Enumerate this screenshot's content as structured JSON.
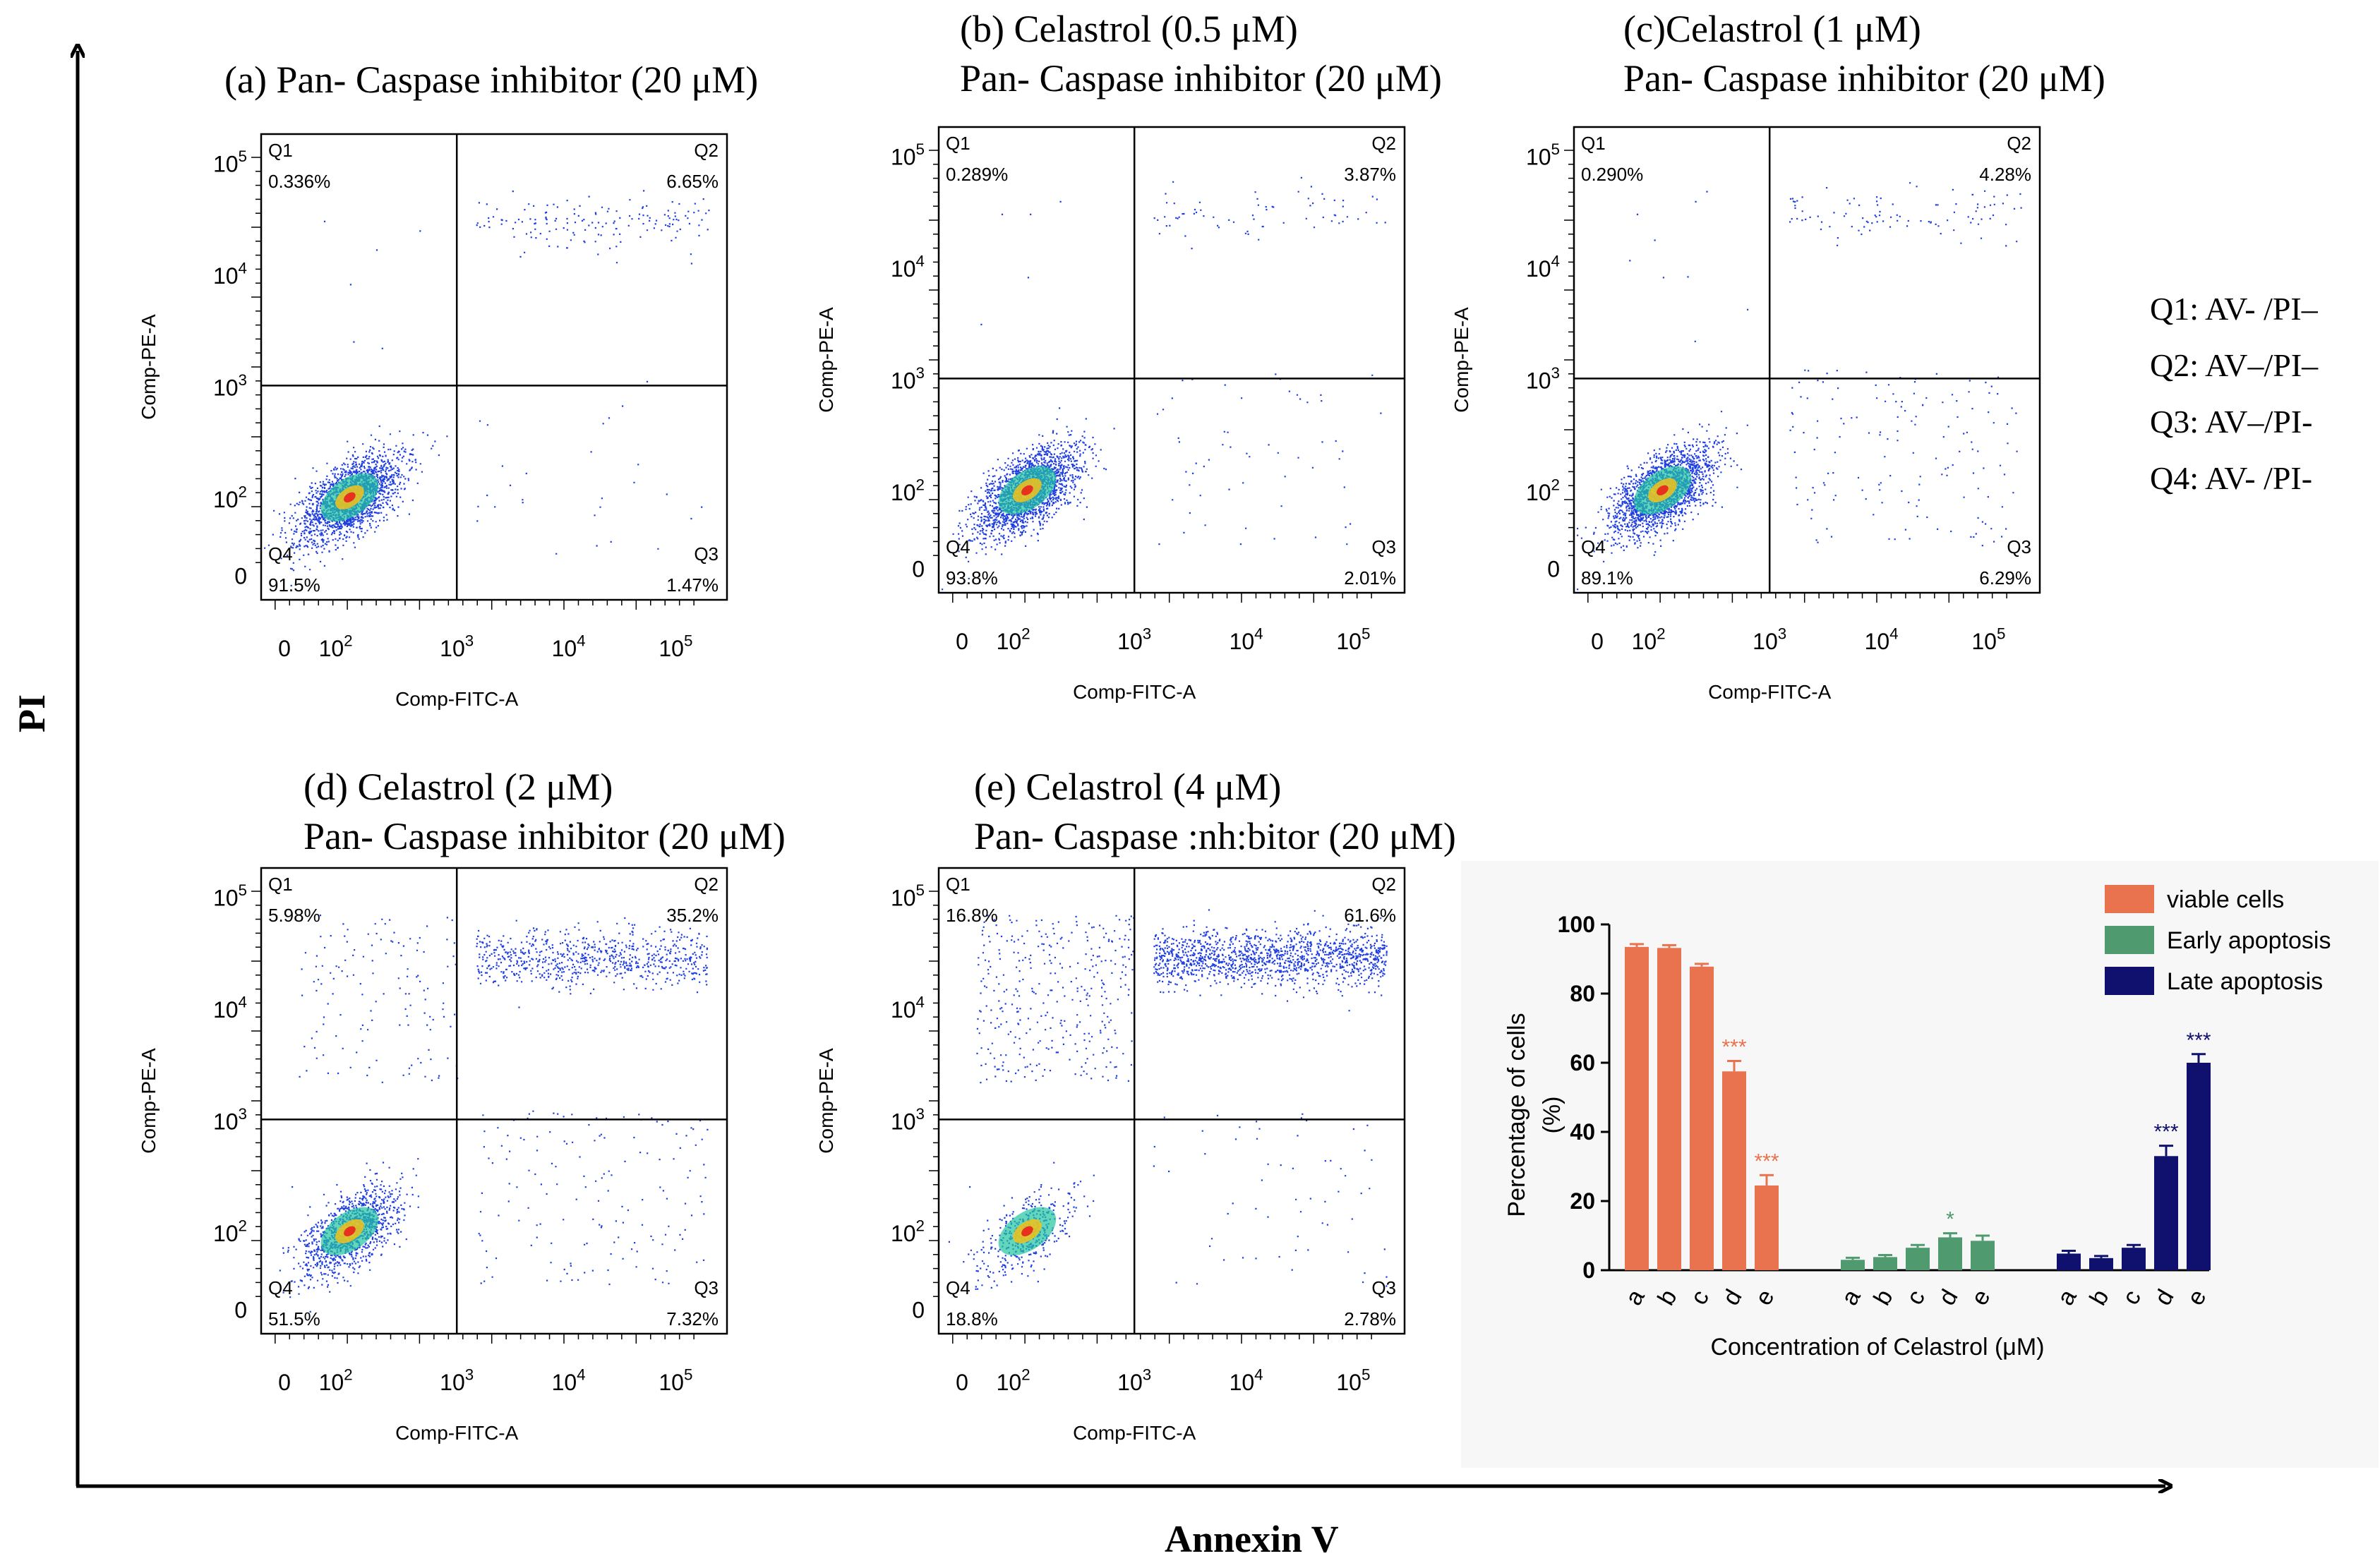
{
  "axes": {
    "y_label": "PI",
    "x_label": "Annexin V"
  },
  "quadrant_legend": [
    "Q1: AV- /PI–",
    "Q2: AV–/PI–",
    "Q3: AV–/PI-",
    "Q4: AV- /PI-"
  ],
  "panels": [
    {
      "title_lines": [
        "(a) Pan- Caspase inhibitor (20 μM)"
      ],
      "q1": "0.336%",
      "q2": "6.65%",
      "q3": "1.47%",
      "q4": "91.5%"
    },
    {
      "title_lines": [
        "(b) Celastrol (0.5 μM)",
        "Pan- Caspase inhibitor (20 μM)"
      ],
      "q1": "0.289%",
      "q2": "3.87%",
      "q3": "2.01%",
      "q4": "93.8%"
    },
    {
      "title_lines": [
        "(c)Celastrol (1 μM)",
        "Pan- Caspase inhibitor (20 μM)"
      ],
      "q1": "0.290%",
      "q2": "4.28%",
      "q3": "6.29%",
      "q4": "89.1%"
    },
    {
      "title_lines": [
        "(d) Celastrol (2 μM)",
        "Pan- Caspase inhibitor (20 μM)"
      ],
      "q1": "5.98%",
      "q2": "35.2%",
      "q3": "7.32%",
      "q4": "51.5%"
    },
    {
      "title_lines": [
        "(e) Celastrol (4 μM)",
        "Pan- Caspase :nh:bitor (20 μM)"
      ],
      "q1": "16.8%",
      "q2": "61.6%",
      "q3": "2.78%",
      "q4": "18.8%"
    }
  ],
  "flow_labels": {
    "x_axis": "Comp-FITC-A",
    "y_axis": "Comp-PE-A",
    "x_ticks": [
      "0",
      "10^2",
      "10^3",
      "10^4",
      "10^5"
    ],
    "y_ticks": [
      "0",
      "10^2",
      "10^3",
      "10^4",
      "10^5"
    ],
    "quadrants": [
      "Q1",
      "Q2",
      "Q3",
      "Q4"
    ]
  },
  "colors": {
    "viable": "#e8734e",
    "early": "#4f9a6e",
    "late": "#10106e",
    "dots": "#1f3fe0"
  },
  "chart_data": [
    {
      "type": "bar",
      "title": "",
      "xlabel": "Concentration of Celastrol (μM)",
      "ylabel": "Percentage of cells (%)",
      "ylim": [
        0,
        100
      ],
      "yticks": [
        0,
        20,
        40,
        60,
        80,
        100
      ],
      "groups": [
        "viable cells",
        "Early apoptosis",
        "Late apoptosis"
      ],
      "categories": [
        "a",
        "b",
        "c",
        "d",
        "e"
      ],
      "series": [
        {
          "name": "viable cells",
          "color": "#e8734e",
          "values": [
            93.5,
            93.2,
            87.8,
            57.5,
            24.5
          ],
          "errors": [
            0.8,
            0.8,
            0.8,
            3,
            3
          ],
          "sig": [
            "",
            "",
            "",
            "***",
            "***"
          ]
        },
        {
          "name": "Early apoptosis",
          "color": "#4f9a6e",
          "values": [
            3.0,
            3.8,
            6.5,
            9.5,
            8.5
          ],
          "errors": [
            0.6,
            0.6,
            0.8,
            1.2,
            1.5
          ],
          "sig": [
            "",
            "",
            "",
            "*",
            ""
          ]
        },
        {
          "name": "Late apoptosis",
          "color": "#10106e",
          "values": [
            4.8,
            3.5,
            6.5,
            33.0,
            60.0
          ],
          "errors": [
            0.8,
            0.6,
            0.8,
            3,
            2.5
          ],
          "sig": [
            "",
            "",
            "",
            "***",
            "***"
          ]
        }
      ],
      "legend_position": "top-right"
    },
    {
      "type": "scatter",
      "description": "Flow cytometry quadrant plots, quadrant percentages per panel",
      "x_axis": "Comp-FITC-A",
      "y_axis": "Comp-PE-A",
      "panels": [
        "a",
        "b",
        "c",
        "d",
        "e"
      ]
    }
  ]
}
